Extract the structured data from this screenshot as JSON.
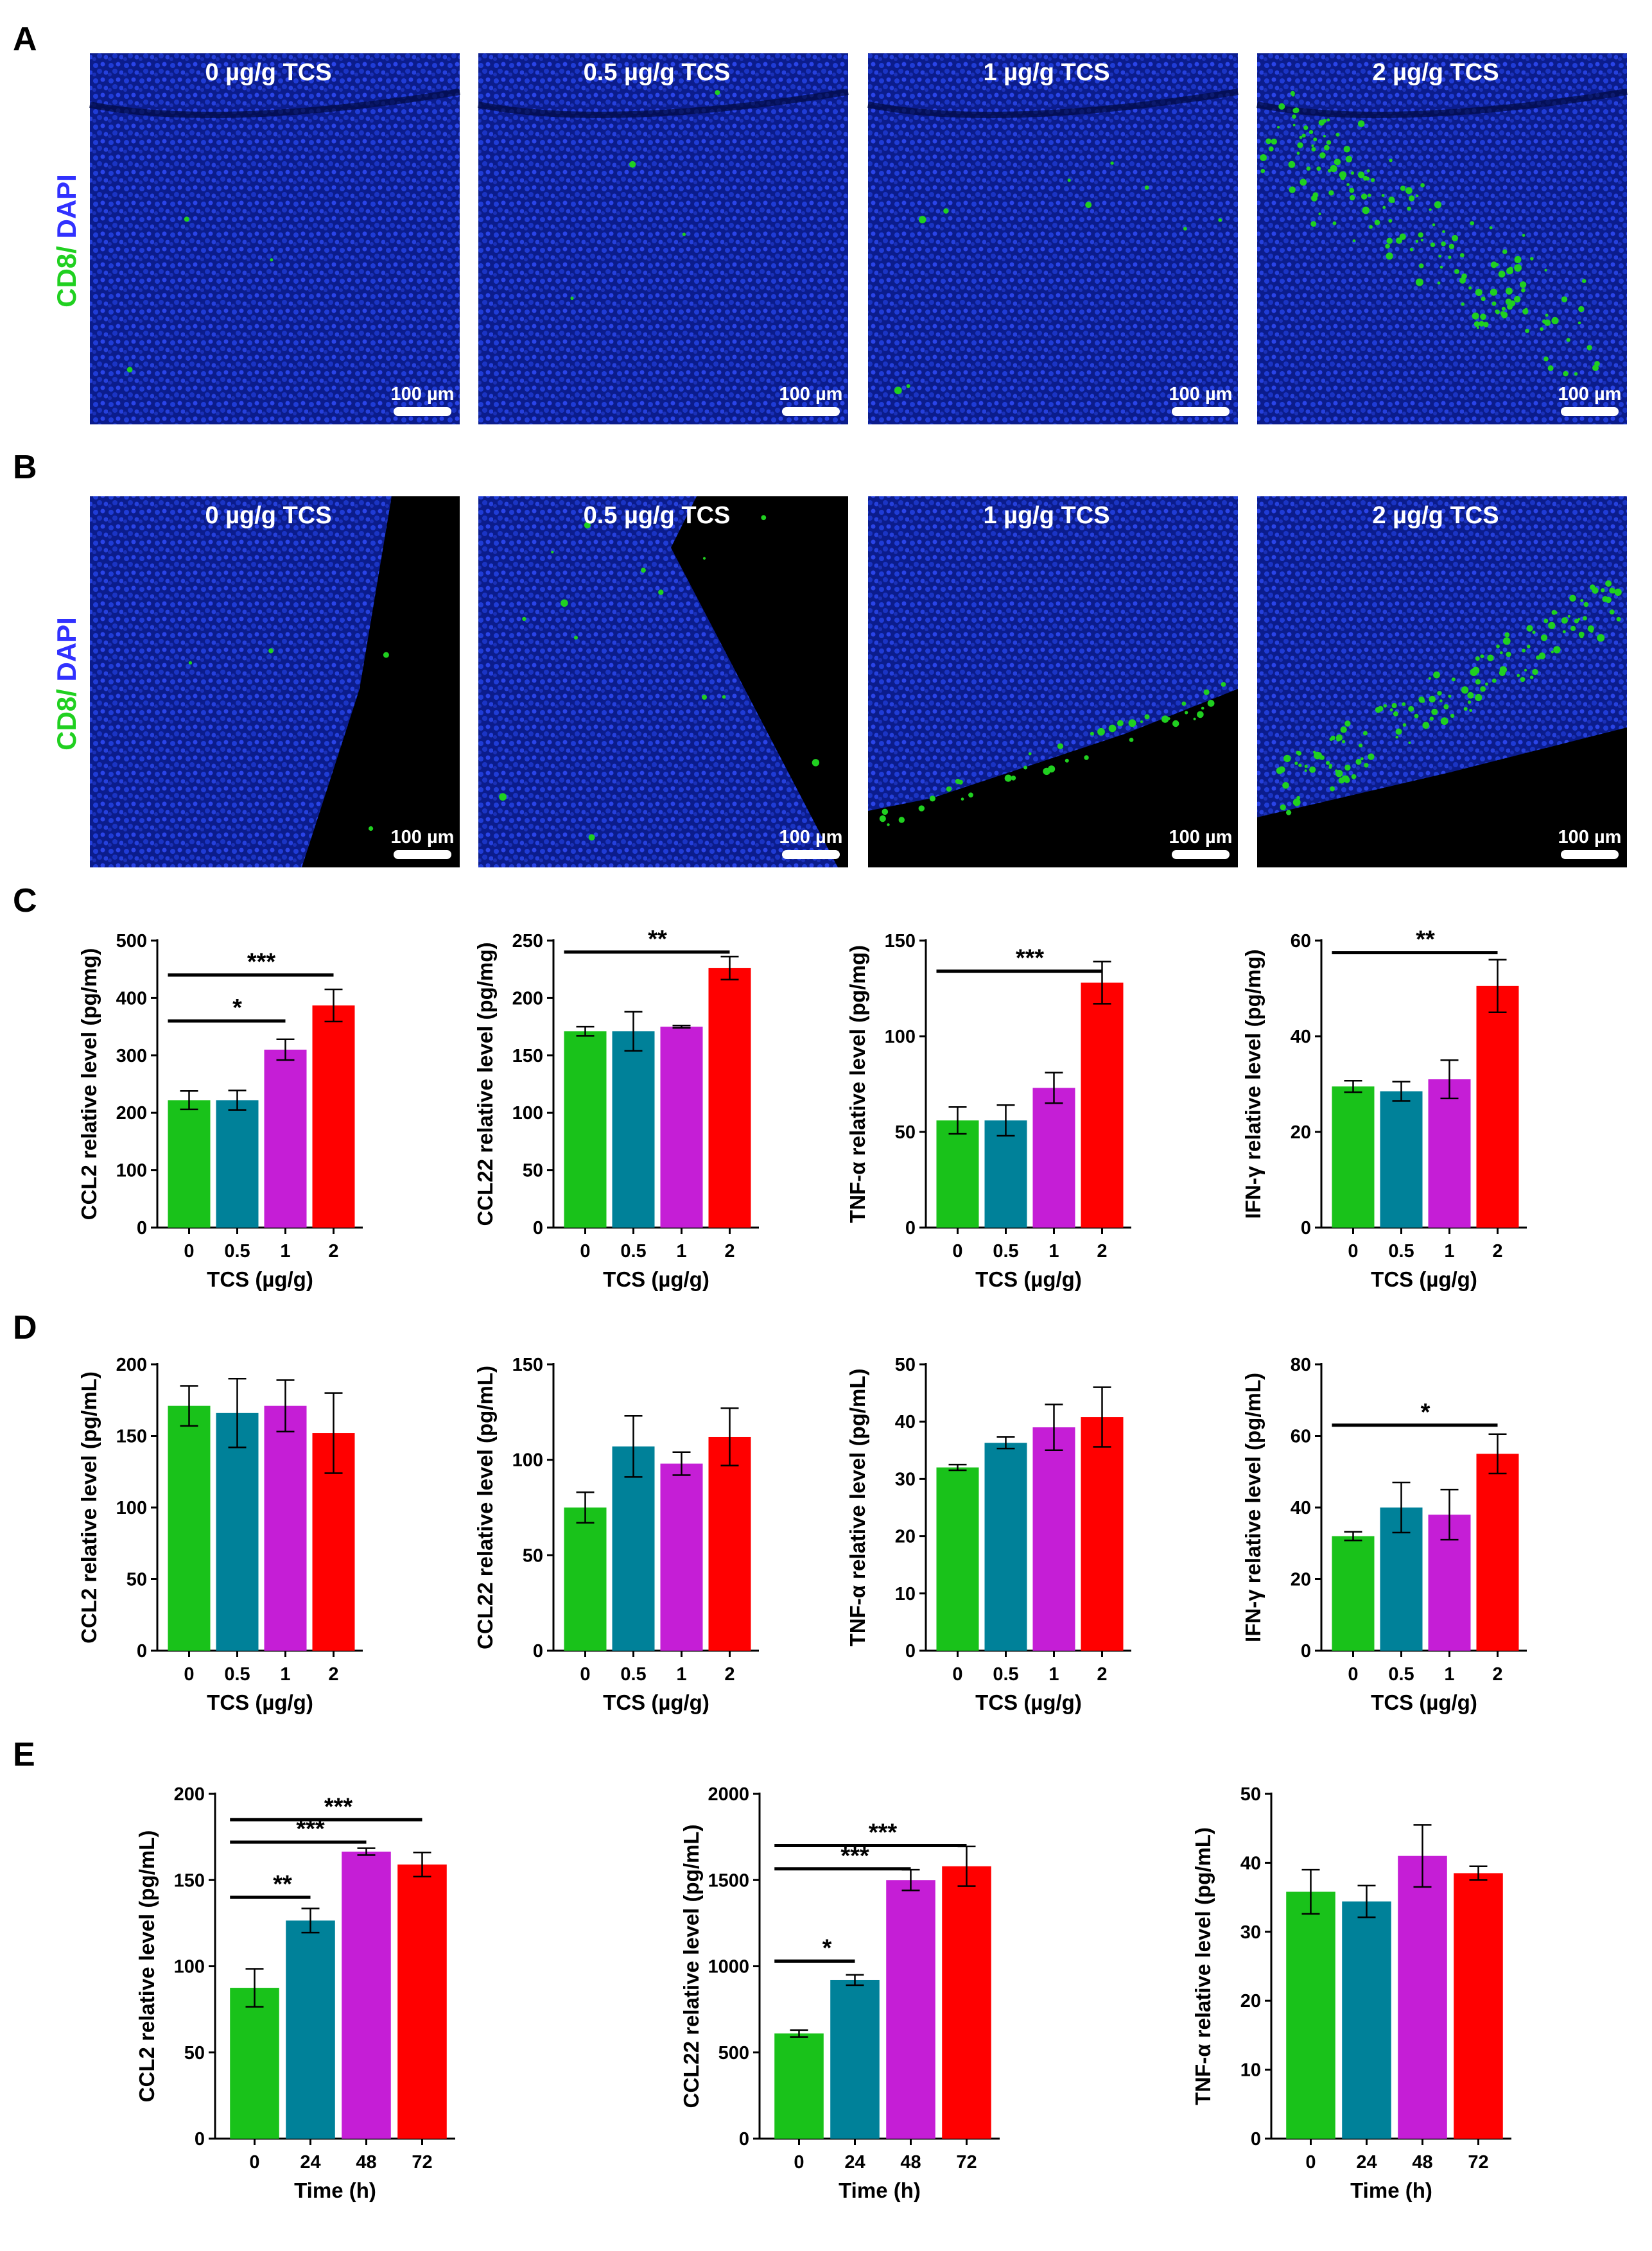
{
  "colors": {
    "green": "#19c21a",
    "teal": "#008199",
    "magenta": "#c51ed6",
    "red": "#ff0000",
    "tissue_blue": "#0a1fa0",
    "tissue_dark": "#040a38",
    "cd8_green": "#20d020",
    "dapi_blue": "#3131ff"
  },
  "panel_labels": {
    "A": "A",
    "B": "B",
    "C": "C",
    "D": "D",
    "E": "E"
  },
  "microscopy": {
    "stain": {
      "cd8": "CD8",
      "separator": "/ ",
      "dapi": "DAPI"
    },
    "scale_bar": "100 µm",
    "groups": [
      "0 µg/g TCS",
      "0.5 µg/g TCS",
      "1 µg/g TCS",
      "2 µg/g TCS"
    ]
  },
  "chart_data": [
    {
      "id": "C1",
      "type": "bar",
      "xlabel": "TCS (µg/g)",
      "ylabel": "CCL2 relative level (pg/mg)",
      "categories": [
        "0",
        "0.5",
        "1",
        "2"
      ],
      "values": [
        222,
        222,
        310,
        387
      ],
      "errors": [
        16,
        17,
        18,
        28
      ],
      "ylim": [
        0,
        500
      ],
      "yticks": [
        "0",
        "100",
        "200",
        "300",
        "400",
        "500"
      ],
      "significance": [
        {
          "from": 0,
          "to": 3,
          "label": "***",
          "y": 440
        },
        {
          "from": 0,
          "to": 2,
          "label": "*",
          "y": 360
        }
      ]
    },
    {
      "id": "C2",
      "type": "bar",
      "xlabel": "TCS (µg/g)",
      "ylabel": "CCL22 relative level (pg/mg)",
      "categories": [
        "0",
        "0.5",
        "1",
        "2"
      ],
      "values": [
        171,
        171,
        175,
        226
      ],
      "errors": [
        4,
        17,
        1,
        10
      ],
      "ylim": [
        0,
        250
      ],
      "yticks": [
        "0",
        "50",
        "100",
        "150",
        "200",
        "250"
      ],
      "significance": [
        {
          "from": 0,
          "to": 3,
          "label": "**",
          "y": 240
        }
      ]
    },
    {
      "id": "C3",
      "type": "bar",
      "xlabel": "TCS (µg/g)",
      "ylabel": "TNF-α relative level (pg/mg)",
      "categories": [
        "0",
        "0.5",
        "1",
        "2"
      ],
      "values": [
        56,
        56,
        73,
        128
      ],
      "errors": [
        7,
        8,
        8,
        11
      ],
      "ylim": [
        0,
        150
      ],
      "yticks": [
        "0",
        "50",
        "100",
        "150"
      ],
      "significance": [
        {
          "from": 0,
          "to": 3,
          "label": "***",
          "y": 134
        }
      ]
    },
    {
      "id": "C4",
      "type": "bar",
      "xlabel": "TCS (µg/g)",
      "ylabel": "IFN-γ relative level (pg/mg)",
      "categories": [
        "0",
        "0.5",
        "1",
        "2"
      ],
      "values": [
        29.5,
        28.5,
        31,
        50.5
      ],
      "errors": [
        1.2,
        2,
        4,
        5.5
      ],
      "ylim": [
        0,
        60
      ],
      "yticks": [
        "0",
        "20",
        "40",
        "60"
      ],
      "significance": [
        {
          "from": 0,
          "to": 3,
          "label": "**",
          "y": 57.5
        }
      ]
    },
    {
      "id": "D1",
      "type": "bar",
      "xlabel": "TCS (µg/g)",
      "ylabel": "CCL2 relative level (pg/mL)",
      "categories": [
        "0",
        "0.5",
        "1",
        "2"
      ],
      "values": [
        171,
        166,
        171,
        152
      ],
      "errors": [
        14,
        24,
        18,
        28
      ],
      "ylim": [
        0,
        200
      ],
      "yticks": [
        "0",
        "50",
        "100",
        "150",
        "200"
      ],
      "significance": []
    },
    {
      "id": "D2",
      "type": "bar",
      "xlabel": "TCS (µg/g)",
      "ylabel": "CCL22 relative level (pg/mL)",
      "categories": [
        "0",
        "0.5",
        "1",
        "2"
      ],
      "values": [
        75,
        107,
        98,
        112
      ],
      "errors": [
        8,
        16,
        6,
        15
      ],
      "ylim": [
        0,
        150
      ],
      "yticks": [
        "0",
        "50",
        "100",
        "150"
      ],
      "significance": []
    },
    {
      "id": "D3",
      "type": "bar",
      "xlabel": "TCS (µg/g)",
      "ylabel": "TNF-α relative level (pg/mL)",
      "categories": [
        "0",
        "0.5",
        "1",
        "2"
      ],
      "values": [
        32,
        36.3,
        39,
        40.8
      ],
      "errors": [
        0.5,
        1,
        4,
        5.2
      ],
      "ylim": [
        0,
        50
      ],
      "yticks": [
        "0",
        "10",
        "20",
        "30",
        "40",
        "50"
      ],
      "significance": []
    },
    {
      "id": "D4",
      "type": "bar",
      "xlabel": "TCS (µg/g)",
      "ylabel": "IFN-γ relative level (pg/mL)",
      "categories": [
        "0",
        "0.5",
        "1",
        "2"
      ],
      "values": [
        32,
        40,
        38,
        55
      ],
      "errors": [
        1.2,
        7,
        7,
        5.5
      ],
      "ylim": [
        0,
        80
      ],
      "yticks": [
        "0",
        "20",
        "40",
        "60",
        "80"
      ],
      "significance": [
        {
          "from": 0,
          "to": 3,
          "label": "*",
          "y": 63
        }
      ]
    },
    {
      "id": "E1",
      "type": "bar",
      "xlabel": "Time (h)",
      "ylabel": "CCL2 relative level (pg/mL)",
      "categories": [
        "0",
        "24",
        "48",
        "72"
      ],
      "values": [
        87.5,
        126.5,
        166.5,
        159
      ],
      "errors": [
        11,
        7,
        2,
        7
      ],
      "ylim": [
        0,
        200
      ],
      "yticks": [
        "0",
        "50",
        "100",
        "150",
        "200"
      ],
      "significance": [
        {
          "from": 0,
          "to": 3,
          "label": "***",
          "y": 185
        },
        {
          "from": 0,
          "to": 2,
          "label": "***",
          "y": 172
        },
        {
          "from": 0,
          "to": 1,
          "label": "**",
          "y": 140
        }
      ]
    },
    {
      "id": "E2",
      "type": "bar",
      "xlabel": "Time (h)",
      "ylabel": "CCL22 relative level (pg/mL)",
      "categories": [
        "0",
        "24",
        "48",
        "72"
      ],
      "values": [
        610,
        920,
        1500,
        1580
      ],
      "errors": [
        20,
        30,
        60,
        115
      ],
      "ylim": [
        0,
        2000
      ],
      "yticks": [
        "0",
        "500",
        "1000",
        "1500",
        "2000"
      ],
      "significance": [
        {
          "from": 0,
          "to": 3,
          "label": "***",
          "y": 1700
        },
        {
          "from": 0,
          "to": 2,
          "label": "***",
          "y": 1565
        },
        {
          "from": 0,
          "to": 1,
          "label": "*",
          "y": 1030
        }
      ]
    },
    {
      "id": "E3",
      "type": "bar",
      "xlabel": "Time (h)",
      "ylabel": "TNF-α relative level (pg/mL)",
      "categories": [
        "0",
        "24",
        "48",
        "72"
      ],
      "values": [
        35.8,
        34.4,
        41,
        38.5
      ],
      "errors": [
        3.2,
        2.3,
        4.5,
        1
      ],
      "ylim": [
        0,
        50
      ],
      "yticks": [
        "0",
        "10",
        "20",
        "30",
        "40",
        "50"
      ],
      "significance": []
    }
  ]
}
